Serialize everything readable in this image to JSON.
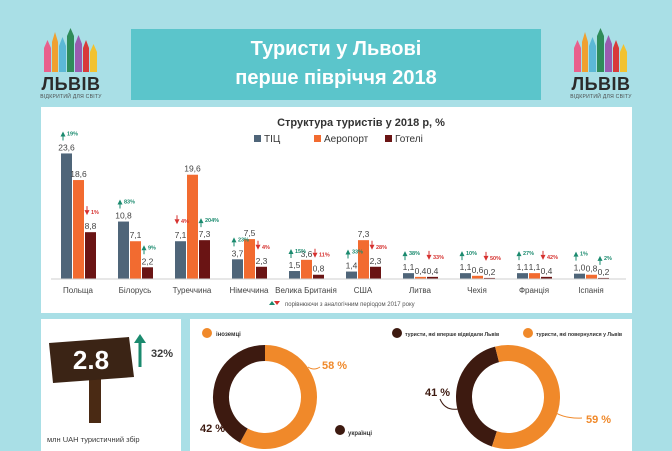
{
  "header": {
    "title_line1": "Туристи у Львові",
    "title_line2": "перше півріччя 2018"
  },
  "logo": {
    "word": "ЛЬВІВ",
    "tagline": "ВІДКРИТИЙ ДЛЯ СВІТУ"
  },
  "colors": {
    "tic": "#4f6579",
    "airport": "#f26b30",
    "hotels": "#6a1414",
    "up": "#1a8a6e",
    "down": "#d6312f",
    "title_bg": "#5bc5cb",
    "page_bg": "#a9dfe6",
    "donut_orange": "#f0892a",
    "donut_dark": "#3d1a10"
  },
  "chart_data": [
    {
      "type": "bar",
      "title": "Структура туристів у 2018 р, %",
      "categories": [
        "Польща",
        "Білорусь",
        "Туреччина",
        "Німеччина",
        "Велика Британія",
        "США",
        "Литва",
        "Чехія",
        "Франція",
        "Іспанія"
      ],
      "series": [
        {
          "name": "ТІЦ",
          "values": [
            23.6,
            10.8,
            7.1,
            3.7,
            1.5,
            1.4,
            1.1,
            1.1,
            1.1,
            1.0
          ]
        },
        {
          "name": "Аеропорт",
          "values": [
            18.6,
            7.1,
            19.6,
            7.5,
            3.6,
            7.3,
            0.4,
            0.6,
            1.1,
            0.8
          ]
        },
        {
          "name": "Готелі",
          "values": [
            8.8,
            2.2,
            7.3,
            2.3,
            0.8,
            2.3,
            0.4,
            0.2,
            0.4,
            0.2
          ]
        }
      ],
      "series_labels": [
        [
          "23,6",
          "10,8",
          "7,1",
          "3,7",
          "1,5",
          "1,4",
          "1,1",
          "1,1",
          "1,1",
          "1,0"
        ],
        [
          "18,6",
          "7,1",
          "19,6",
          "7,5",
          "3,6",
          "7,3",
          "0,4",
          "0,6",
          "1,1",
          "0,8"
        ],
        [
          "8,8",
          "2,2",
          "7,3",
          "2,3",
          "0,8",
          "2,3",
          "0,4",
          "0,2",
          "0,4",
          "0,2"
        ]
      ],
      "changes": [
        {
          "category": "Польща",
          "series": "ТІЦ",
          "dir": "up",
          "label": "19%"
        },
        {
          "category": "Польща",
          "series": "Готелі",
          "dir": "down",
          "label": "1%"
        },
        {
          "category": "Білорусь",
          "series": "ТІЦ",
          "dir": "up",
          "label": "83%"
        },
        {
          "category": "Білорусь",
          "series": "Готелі",
          "dir": "up",
          "label": "9%"
        },
        {
          "category": "Туреччина",
          "series": "ТІЦ",
          "dir": "down",
          "label": "4%"
        },
        {
          "category": "Туреччина",
          "series": "Готелі",
          "dir": "up",
          "label": "204%"
        },
        {
          "category": "Німеччина",
          "series": "ТІЦ",
          "dir": "up",
          "label": "23%"
        },
        {
          "category": "Німеччина",
          "series": "Готелі",
          "dir": "down",
          "label": "4%"
        },
        {
          "category": "Велика Британія",
          "series": "ТІЦ",
          "dir": "up",
          "label": "15%"
        },
        {
          "category": "Велика Британія",
          "series": "Готелі",
          "dir": "down",
          "label": "11%"
        },
        {
          "category": "США",
          "series": "ТІЦ",
          "dir": "up",
          "label": "33%"
        },
        {
          "category": "США",
          "series": "Готелі",
          "dir": "down",
          "label": "28%"
        },
        {
          "category": "Литва",
          "series": "ТІЦ",
          "dir": "up",
          "label": "38%"
        },
        {
          "category": "Литва",
          "series": "Готелі",
          "dir": "down",
          "label": "33%"
        },
        {
          "category": "Чехія",
          "series": "ТІЦ",
          "dir": "up",
          "label": "10%"
        },
        {
          "category": "Чехія",
          "series": "Готелі",
          "dir": "down",
          "label": "50%"
        },
        {
          "category": "Франція",
          "series": "ТІЦ",
          "dir": "up",
          "label": "27%"
        },
        {
          "category": "Франція",
          "series": "Готелі",
          "dir": "down",
          "label": "42%"
        },
        {
          "category": "Іспанія",
          "series": "ТІЦ",
          "dir": "up",
          "label": "1%"
        },
        {
          "category": "Іспанія",
          "series": "Готелі",
          "dir": "up",
          "label": "2%"
        }
      ],
      "footnote": "порівнюючи з аналогічним періодом 2017 року",
      "ylim": [
        0,
        25
      ],
      "legend": "top-center"
    },
    {
      "type": "pie",
      "subtype": "donut",
      "slices": [
        {
          "label": "іноземці",
          "value": 58,
          "display": "58 %"
        },
        {
          "label": "українці",
          "value": 42,
          "display": "42 %"
        }
      ]
    },
    {
      "type": "pie",
      "subtype": "donut",
      "slices": [
        {
          "label": "туристи, які вперше відвідали Львів",
          "value": 41,
          "display": "41 %"
        },
        {
          "label": "туристи, які повернулися у Львів",
          "value": 59,
          "display": "59 %"
        }
      ]
    }
  ],
  "tax": {
    "value": "2.8",
    "change": "32%",
    "caption": "млн UAH туристичний збір"
  }
}
